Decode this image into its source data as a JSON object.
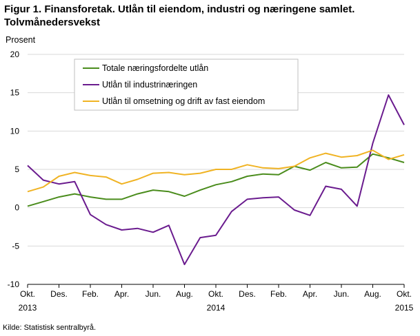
{
  "header": {
    "title": "Figur 1. Finansforetak. Utlån til eiendom, industri og næringene samlet. Tolvmånedersvekst"
  },
  "footer": {
    "source": "Kilde: Statistisk sentralbyrå."
  },
  "chart_data": {
    "type": "line",
    "title": "Figur 1. Finansforetak. Utlån til eiendom, industri og næringene samlet. Tolvmånedersvekst",
    "ylabel": "Prosent",
    "xlabel": "",
    "ylim": [
      -10,
      20
    ],
    "yticks": [
      -10,
      -5,
      0,
      5,
      10,
      15,
      20
    ],
    "grid": "horizontal",
    "legend_position": "top-left",
    "x": [
      "Okt. 2013",
      "Nov. 2013",
      "Des. 2013",
      "Jan. 2014",
      "Feb. 2014",
      "Mar. 2014",
      "Apr. 2014",
      "Mai 2014",
      "Jun. 2014",
      "Jul. 2014",
      "Aug. 2014",
      "Sep. 2014",
      "Okt. 2014",
      "Nov. 2014",
      "Des. 2014",
      "Jan. 2015",
      "Feb. 2015",
      "Mar. 2015",
      "Apr. 2015",
      "Mai 2015",
      "Jun. 2015",
      "Jul. 2015",
      "Aug. 2015",
      "Sep. 2015",
      "Okt. 2015"
    ],
    "xtick_labels": [
      {
        "index": 0,
        "label": "Okt.",
        "year": "2013"
      },
      {
        "index": 2,
        "label": "Des.",
        "year": ""
      },
      {
        "index": 4,
        "label": "Feb.",
        "year": ""
      },
      {
        "index": 6,
        "label": "Apr.",
        "year": ""
      },
      {
        "index": 8,
        "label": "Jun.",
        "year": ""
      },
      {
        "index": 10,
        "label": "Aug.",
        "year": ""
      },
      {
        "index": 12,
        "label": "Okt.",
        "year": "2014"
      },
      {
        "index": 14,
        "label": "Des.",
        "year": ""
      },
      {
        "index": 16,
        "label": "Feb.",
        "year": ""
      },
      {
        "index": 18,
        "label": "Apr.",
        "year": ""
      },
      {
        "index": 20,
        "label": "Jun.",
        "year": ""
      },
      {
        "index": 22,
        "label": "Aug.",
        "year": ""
      },
      {
        "index": 24,
        "label": "Okt.",
        "year": "2015"
      }
    ],
    "series": [
      {
        "name": "Totale næringsfordelte utlån",
        "color": "#4a8c1c",
        "values": [
          0.2,
          0.8,
          1.4,
          1.8,
          1.4,
          1.1,
          1.1,
          1.8,
          2.3,
          2.1,
          1.5,
          2.3,
          3.0,
          3.4,
          4.1,
          4.4,
          4.3,
          5.4,
          4.9,
          5.9,
          5.2,
          5.3,
          7.0,
          6.5,
          5.9
        ]
      },
      {
        "name": "Utlån til industrinæringen",
        "color": "#6a1b8e",
        "values": [
          5.5,
          3.6,
          3.1,
          3.4,
          -0.9,
          -2.2,
          -2.9,
          -2.7,
          -3.2,
          -2.3,
          -7.4,
          -3.9,
          -3.6,
          -0.5,
          1.1,
          1.3,
          1.4,
          -0.3,
          -1.0,
          2.8,
          2.4,
          0.2,
          8.4,
          14.7,
          10.8
        ]
      },
      {
        "name": "Utlån til omsetning og drift  av fast eiendom",
        "color": "#f0b323",
        "values": [
          2.1,
          2.7,
          4.1,
          4.6,
          4.2,
          4.0,
          3.1,
          3.7,
          4.5,
          4.6,
          4.3,
          4.5,
          5.0,
          5.0,
          5.6,
          5.2,
          5.1,
          5.4,
          6.5,
          7.1,
          6.6,
          6.8,
          7.5,
          6.3,
          6.9
        ]
      }
    ]
  }
}
